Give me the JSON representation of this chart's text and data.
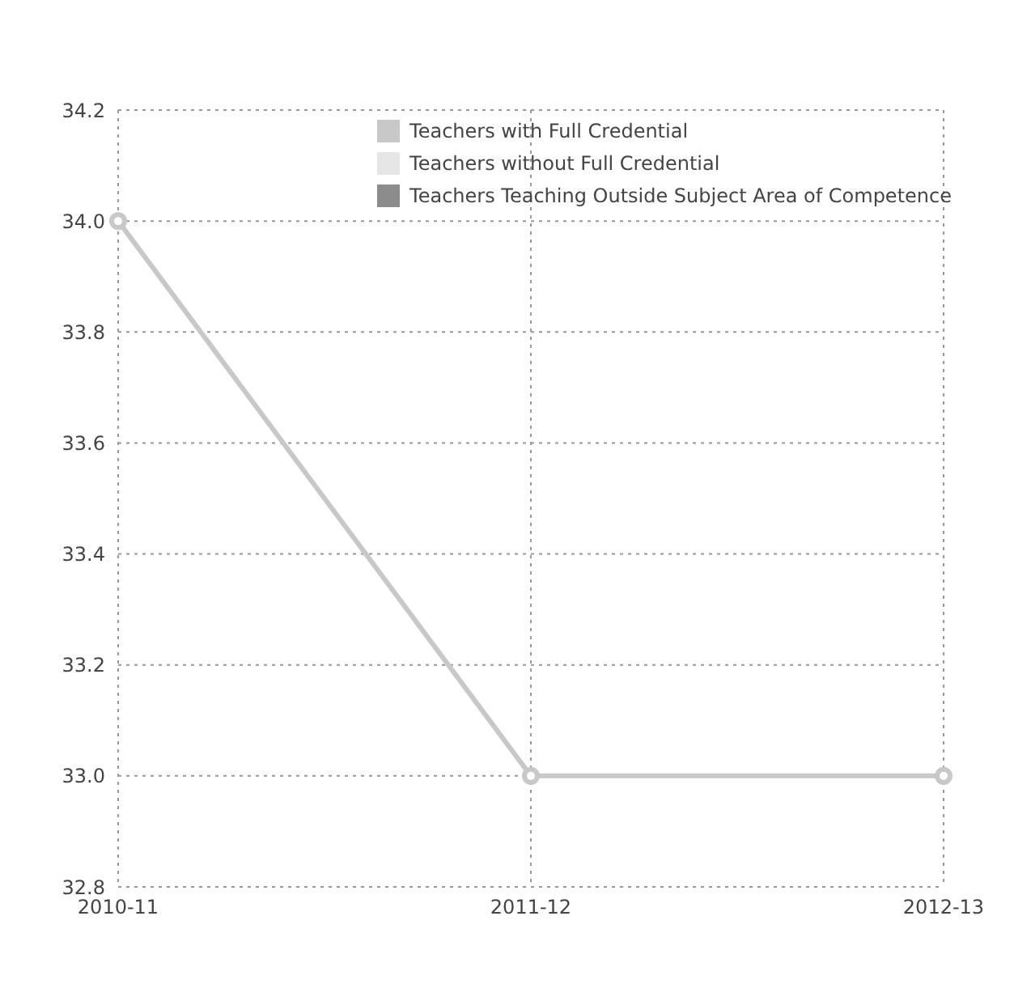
{
  "chart_data": {
    "type": "line",
    "categories": [
      "2010-11",
      "2011-12",
      "2012-13"
    ],
    "series": [
      {
        "name": "Teachers with Full Credential",
        "color": "#c8c8c8",
        "values": [
          34.0,
          33.0,
          33.0
        ]
      },
      {
        "name": "Teachers without Full Credential",
        "color": "#e6e6e6",
        "values": [
          null,
          null,
          null
        ]
      },
      {
        "name": "Teachers Teaching Outside Subject Area of Competence",
        "color": "#8c8c8c",
        "values": [
          null,
          null,
          null
        ]
      }
    ],
    "ylim": [
      32.8,
      34.2
    ],
    "yticks": [
      {
        "value": 32.8,
        "label": "32.8"
      },
      {
        "value": 33,
        "label": "33.0"
      },
      {
        "value": 33.2,
        "label": "33.2"
      },
      {
        "value": 33.4,
        "label": "33.4"
      },
      {
        "value": 33.6,
        "label": "33.6"
      },
      {
        "value": 33.8,
        "label": "33.8"
      },
      {
        "value": 34,
        "label": "34.0"
      },
      {
        "value": 34.2,
        "label": "34.2"
      }
    ],
    "grid": true,
    "legend": "top right",
    "marker": "circle",
    "line_style": "solid"
  }
}
